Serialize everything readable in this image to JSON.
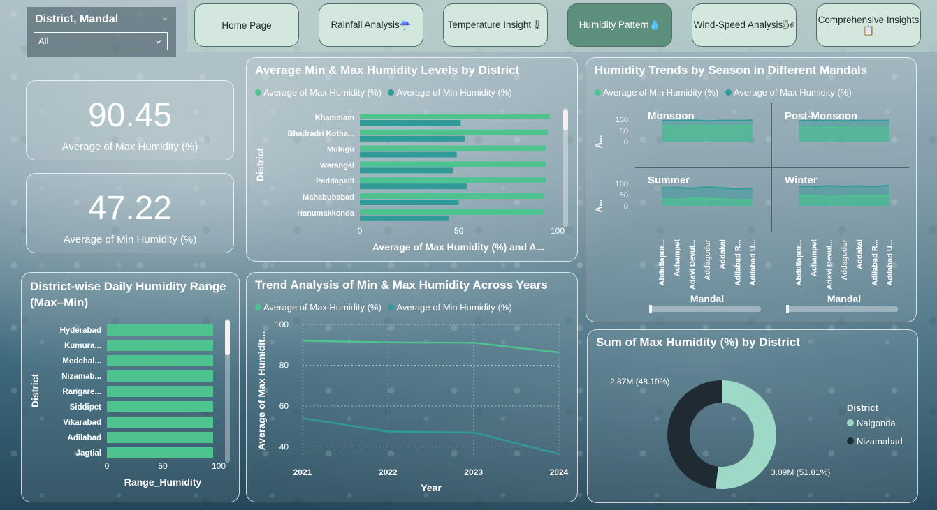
{
  "filter": {
    "title": "District, Mandal",
    "value": "All"
  },
  "nav": {
    "home": "Home Page",
    "rainfall": "Rainfall Analysis☔",
    "temperature": "Temperature Insight🌡",
    "humidity": "Humidity Pattern💧",
    "wind": "Wind-Speed Analysis🌬",
    "comprehensive": "Comprehensive Insights 📋"
  },
  "kpi": {
    "max_value": "90.45",
    "max_label": "Average of Max Humidity (%)",
    "min_value": "47.22",
    "min_label": "Average of Min Humidity (%)"
  },
  "colors": {
    "max": "#4fc38f",
    "min": "#2f9b98",
    "nalgonda": "#9ed8c7",
    "nizamabad": "#1f2a33"
  },
  "panel_titles": {
    "minmax": "Average Min & Max Humidity Levels by District",
    "seasonal": "Humidity Trends by Season in Different Mandals",
    "range_line1": "District-wise Daily Humidity Range",
    "range_line2": "(Max–Min)",
    "trend": "Trend Analysis of Min & Max Humidity Across Years",
    "donut": "Sum of Max Humidity (%) by District"
  },
  "legends": {
    "max": "Average of Max Humidity (%)",
    "min": "Average of Min Humidity (%)"
  },
  "chart_data": [
    {
      "type": "bar",
      "title": "Average Min & Max Humidity Levels by District",
      "categories": [
        "Khammam",
        "Bhadradri Kotha...",
        "Mulugu",
        "Warangal",
        "Peddapalli",
        "Mahabubabad",
        "Hanumakkonda"
      ],
      "series": [
        {
          "name": "Average of Max Humidity (%)",
          "values": [
            96,
            95,
            94,
            94,
            94,
            93,
            93
          ]
        },
        {
          "name": "Average of Min Humidity (%)",
          "values": [
            51,
            53,
            49,
            47,
            54,
            50,
            45
          ]
        }
      ],
      "xlabel": "Average of Max Humidity (%) and A...",
      "ylabel": "District",
      "xlim": [
        0,
        100
      ],
      "xticks": [
        "0",
        "50",
        "100"
      ],
      "legend": "top-left"
    },
    {
      "type": "bar",
      "title": "District-wise Daily Humidity Range (Max–Min)",
      "categories": [
        "Hyderabad",
        "Kumura...",
        "Medchal...",
        "Nizamab...",
        "Rangare...",
        "Siddipet",
        "Vikarabad",
        "Adilabad",
        "Jagtial"
      ],
      "values": [
        95,
        95,
        95,
        95,
        95,
        95,
        95,
        95,
        95
      ],
      "xlabel": "Range_Humidity",
      "ylabel": "District",
      "xlim": [
        0,
        100
      ],
      "xticks": [
        "0",
        "50",
        "100"
      ]
    },
    {
      "type": "line",
      "title": "Trend Analysis of Min & Max Humidity Across Years",
      "x": [
        "2021",
        "2022",
        "2023",
        "2024"
      ],
      "series": [
        {
          "name": "Average of Max Humidity (%)",
          "values": [
            92,
            91.2,
            91,
            86.3
          ]
        },
        {
          "name": "Average of Min Humidity (%)",
          "values": [
            54,
            47.5,
            47,
            36.5
          ]
        }
      ],
      "xlabel": "Year",
      "ylabel": "Average of Max Humidit...",
      "ylim": [
        35,
        100
      ],
      "yticks": [
        "40",
        "60",
        "80",
        "100"
      ],
      "grid": true,
      "legend": "top-left"
    },
    {
      "type": "area",
      "title": "Humidity Trends by Season in Different Mandals",
      "panels": [
        "Monsoon",
        "Post-Monsoon",
        "Summer",
        "Winter"
      ],
      "x": [
        "Abdullapur...",
        "Achampet",
        "Adavi Devul...",
        "Addagudur",
        "Addakal",
        "Adilabad R...",
        "Adilabad U..."
      ],
      "series": [
        {
          "name": "Average of Min Humidity (%)",
          "values_by_panel": {
            "Monsoon": [
              70,
              72,
              71,
              70,
              72,
              71,
              70
            ],
            "Post-Monsoon": [
              65,
              63,
              66,
              64,
              62,
              63,
              60
            ],
            "Summer": [
              30,
              28,
              35,
              32,
              30,
              26,
              28
            ],
            "Winter": [
              45,
              44,
              40,
              42,
              45,
              43,
              46
            ]
          }
        },
        {
          "name": "Average of Max Humidity (%)",
          "values_by_panel": {
            "Monsoon": [
              95,
              94,
              96,
              93,
              95,
              94,
              96
            ],
            "Post-Monsoon": [
              93,
              95,
              94,
              93,
              95,
              94,
              95
            ],
            "Summer": [
              80,
              82,
              78,
              84,
              80,
              75,
              78
            ],
            "Winter": [
              88,
              86,
              90,
              87,
              89,
              86,
              92
            ]
          }
        }
      ],
      "xlabel": "Mandal",
      "ylabel": "A...",
      "ylim": [
        0,
        100
      ],
      "yticks": [
        "0",
        "50",
        "100"
      ],
      "legend": "top-left"
    },
    {
      "type": "pie",
      "title": "Sum of Max Humidity (%) by District",
      "labels": [
        "Nalgonda",
        "Nizamabad"
      ],
      "values": [
        3.09,
        2.87
      ],
      "data_labels": [
        "3.09M (51.81%)",
        "2.87M (48.19%)"
      ],
      "legend_title": "District",
      "legend": "right"
    }
  ]
}
